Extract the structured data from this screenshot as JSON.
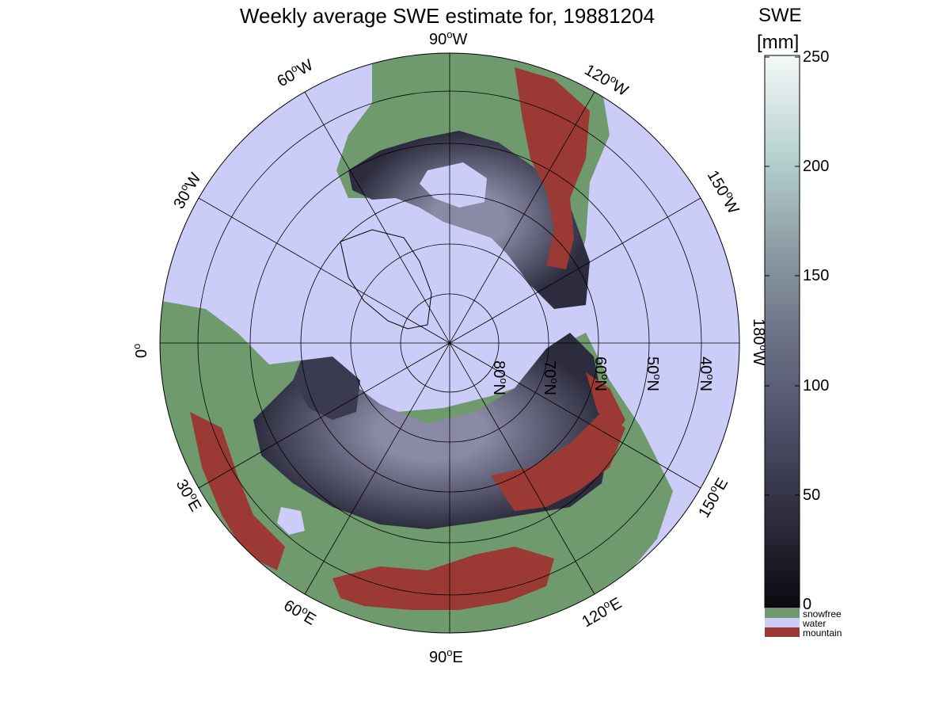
{
  "title": "Weekly average SWE estimate for, 19881204",
  "colorbar": {
    "label_line1": "SWE",
    "label_line2": "[mm]",
    "ticks": [
      "250",
      "200",
      "150",
      "100",
      "50",
      "0"
    ],
    "categories": [
      {
        "label": "snowfree",
        "color": "#6f9a6d"
      },
      {
        "label": "water",
        "color": "#ccccf8"
      },
      {
        "label": "mountain",
        "color": "#9b3a35"
      }
    ],
    "gradient": [
      "#0a0a10",
      "#2a2a3a",
      "#4d4d66",
      "#6e7488",
      "#8e9fa6",
      "#b8d2cf",
      "#f4f8f8"
    ]
  },
  "map": {
    "projection": "north polar stereographic",
    "colors": {
      "water": "#ccccf8",
      "snowfree": "#6f9a6d",
      "mountain": "#9b3a35",
      "snow_low": "#2c2c3e",
      "snow_high": "#8a8aa6"
    },
    "longitude_labels": {
      "w90": "90",
      "w60": "60",
      "w120": "120",
      "w30": "30",
      "w150": "150",
      "zero": "0",
      "w180": "180",
      "e30": "30",
      "e150": "150",
      "e60": "60",
      "e120": "120",
      "e90": "90",
      "suffix_w": "W",
      "suffix_e": "E",
      "degree": "o"
    },
    "latitude_labels": [
      "80",
      "70",
      "60",
      "50",
      "40"
    ],
    "latitude_suffix": "N"
  }
}
